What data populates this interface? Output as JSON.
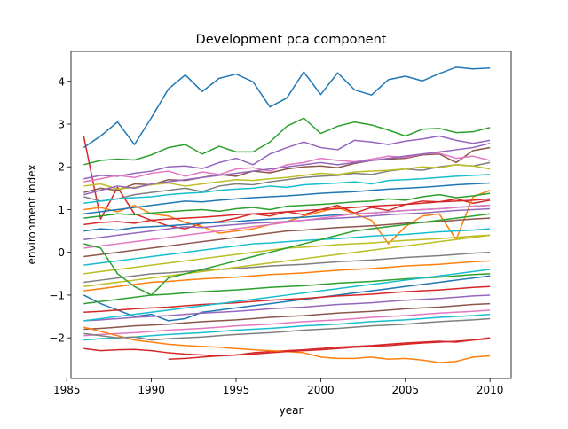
{
  "chart_data": {
    "type": "line",
    "title": "Development pca component",
    "xlabel": "year",
    "ylabel": "environment index",
    "xlim": [
      1985.25,
      2011.25
    ],
    "ylim": [
      -2.95,
      4.7
    ],
    "xticks": [
      1985,
      1990,
      1995,
      2000,
      2005,
      2010
    ],
    "yticks": [
      -2,
      -1,
      0,
      1,
      2,
      3,
      4
    ],
    "grid": false,
    "legend": "none",
    "palette": [
      "#1f77b4",
      "#ff7f0e",
      "#2ca02c",
      "#d62728",
      "#9467bd",
      "#8c564b",
      "#e377c2",
      "#7f7f7f",
      "#bcbd22",
      "#17becf"
    ],
    "x": [
      1986,
      1987,
      1988,
      1989,
      1990,
      1991,
      1992,
      1993,
      1994,
      1995,
      1996,
      1997,
      1998,
      1999,
      2000,
      2001,
      2002,
      2003,
      2004,
      2005,
      2006,
      2007,
      2008,
      2009,
      2010
    ],
    "series": [
      {
        "color": "#1f77b4",
        "values": [
          2.45,
          2.72,
          3.05,
          2.52,
          3.15,
          3.82,
          4.15,
          3.76,
          4.07,
          4.17,
          3.99,
          3.4,
          3.61,
          4.22,
          3.69,
          4.2,
          3.8,
          3.68,
          4.04,
          4.12,
          4.01,
          4.18,
          4.33,
          4.29,
          4.31
        ]
      },
      {
        "color": "#2ca02c",
        "values": [
          2.05,
          2.15,
          2.18,
          2.16,
          2.28,
          2.45,
          2.52,
          2.3,
          2.48,
          2.35,
          2.35,
          2.58,
          2.95,
          3.14,
          2.78,
          2.95,
          3.05,
          2.98,
          2.86,
          2.72,
          2.88,
          2.9,
          2.8,
          2.82,
          2.92
        ]
      },
      {
        "color": "#d62728",
        "values": [
          2.72,
          0.78,
          1.52,
          0.9,
          0.75,
          0.62,
          0.55,
          0.68,
          0.72,
          0.8,
          0.9,
          0.85,
          0.95,
          0.88,
          1.0,
          1.1,
          0.92,
          1.05,
          0.98,
          1.12,
          1.2,
          1.18,
          1.25,
          1.15,
          1.22
        ]
      },
      {
        "color": "#9467bd",
        "values": [
          1.72,
          1.8,
          1.78,
          1.85,
          1.9,
          2.0,
          2.02,
          1.96,
          2.1,
          2.2,
          2.05,
          2.3,
          2.45,
          2.58,
          2.45,
          2.4,
          2.62,
          2.58,
          2.52,
          2.6,
          2.65,
          2.72,
          2.62,
          2.55,
          2.62
        ]
      },
      {
        "color": "#8c564b",
        "values": [
          1.4,
          1.5,
          1.45,
          1.6,
          1.58,
          1.7,
          1.68,
          1.75,
          1.82,
          1.78,
          1.9,
          1.86,
          1.95,
          2.0,
          2.02,
          1.98,
          2.08,
          2.15,
          2.18,
          2.2,
          2.28,
          2.3,
          2.1,
          2.38,
          2.45
        ]
      },
      {
        "color": "#e377c2",
        "values": [
          1.65,
          1.72,
          1.8,
          1.75,
          1.85,
          1.9,
          1.78,
          1.88,
          1.82,
          1.95,
          1.98,
          1.9,
          2.05,
          2.1,
          2.2,
          2.15,
          2.12,
          2.18,
          2.25,
          2.22,
          2.3,
          2.32,
          2.2,
          2.25,
          2.15
        ]
      },
      {
        "color": "#7f7f7f",
        "values": [
          1.3,
          1.2,
          1.25,
          1.35,
          1.4,
          1.45,
          1.5,
          1.42,
          1.55,
          1.6,
          1.58,
          1.65,
          1.7,
          1.75,
          1.78,
          1.8,
          1.85,
          1.82,
          1.9,
          1.95,
          1.92,
          2.0,
          2.05,
          2.02,
          2.1
        ]
      },
      {
        "color": "#bcbd22",
        "values": [
          1.55,
          1.6,
          1.48,
          1.52,
          1.58,
          1.62,
          1.55,
          1.6,
          1.65,
          1.7,
          1.68,
          1.72,
          1.75,
          1.8,
          1.85,
          1.82,
          1.88,
          1.9,
          1.92,
          1.95,
          2.0,
          1.98,
          2.05,
          2.02,
          1.95
        ]
      },
      {
        "color": "#17becf",
        "values": [
          1.15,
          1.2,
          1.25,
          1.28,
          1.3,
          1.35,
          1.38,
          1.4,
          1.45,
          1.48,
          1.5,
          1.55,
          1.52,
          1.58,
          1.6,
          1.62,
          1.65,
          1.6,
          1.68,
          1.7,
          1.72,
          1.75,
          1.78,
          1.8,
          1.82
        ]
      },
      {
        "color": "#ff7f0e",
        "values": [
          1.0,
          1.05,
          0.95,
          1.1,
          0.9,
          0.85,
          0.7,
          0.6,
          0.45,
          0.5,
          0.55,
          0.65,
          0.72,
          0.85,
          0.95,
          1.05,
          0.9,
          0.75,
          0.2,
          0.6,
          0.85,
          0.9,
          0.3,
          1.3,
          1.45
        ]
      },
      {
        "color": "#2ca02c",
        "values": [
          0.8,
          0.85,
          0.9,
          0.88,
          0.92,
          0.95,
          0.98,
          1.0,
          0.96,
          1.02,
          1.05,
          1.0,
          1.08,
          1.1,
          1.12,
          1.15,
          1.18,
          1.2,
          1.25,
          1.22,
          1.3,
          1.35,
          1.28,
          1.32,
          1.38
        ]
      },
      {
        "color": "#d62728",
        "values": [
          0.65,
          0.7,
          0.72,
          0.68,
          0.75,
          0.78,
          0.8,
          0.82,
          0.85,
          0.88,
          0.9,
          0.92,
          0.95,
          0.98,
          1.0,
          1.02,
          1.05,
          1.08,
          1.1,
          1.12,
          1.15,
          1.18,
          1.2,
          1.22,
          1.25
        ]
      },
      {
        "color": "#1f77b4",
        "values": [
          0.5,
          0.55,
          0.52,
          0.58,
          0.6,
          0.62,
          0.65,
          0.68,
          0.7,
          0.72,
          0.75,
          0.78,
          0.8,
          0.82,
          0.85,
          0.88,
          0.9,
          0.92,
          0.95,
          0.98,
          1.0,
          1.02,
          1.05,
          1.08,
          1.1
        ]
      },
      {
        "color": "#9467bd",
        "values": [
          0.3,
          0.35,
          0.4,
          0.45,
          0.5,
          0.55,
          0.6,
          0.58,
          0.62,
          0.65,
          0.68,
          0.7,
          0.72,
          0.75,
          0.78,
          0.8,
          0.82,
          0.85,
          0.88,
          0.9,
          0.92,
          0.95,
          0.98,
          1.0,
          1.02
        ]
      },
      {
        "color": "#e377c2",
        "values": [
          0.1,
          0.15,
          0.2,
          0.25,
          0.3,
          0.35,
          0.4,
          0.45,
          0.5,
          0.55,
          0.6,
          0.65,
          0.7,
          0.75,
          0.8,
          0.85,
          0.9,
          0.92,
          0.95,
          0.98,
          1.0,
          1.02,
          1.05,
          1.08,
          1.1
        ]
      },
      {
        "color": "#8c564b",
        "values": [
          -0.1,
          -0.05,
          0.0,
          0.05,
          0.1,
          0.15,
          0.2,
          0.25,
          0.3,
          0.35,
          0.4,
          0.45,
          0.5,
          0.52,
          0.55,
          0.58,
          0.6,
          0.62,
          0.65,
          0.68,
          0.7,
          0.72,
          0.75,
          0.78,
          0.8
        ]
      },
      {
        "color": "#17becf",
        "values": [
          -0.3,
          -0.25,
          -0.2,
          -0.15,
          -0.1,
          -0.05,
          0.0,
          0.05,
          0.1,
          0.15,
          0.2,
          0.22,
          0.25,
          0.28,
          0.3,
          0.32,
          0.35,
          0.38,
          0.4,
          0.42,
          0.45,
          0.48,
          0.5,
          0.52,
          0.55
        ]
      },
      {
        "color": "#bcbd22",
        "values": [
          -0.5,
          -0.45,
          -0.4,
          -0.35,
          -0.3,
          -0.25,
          -0.2,
          -0.15,
          -0.1,
          -0.05,
          0.0,
          0.05,
          0.1,
          0.12,
          0.15,
          0.18,
          0.2,
          0.22,
          0.25,
          0.28,
          0.3,
          0.32,
          0.35,
          0.38,
          0.4
        ]
      },
      {
        "color": "#7f7f7f",
        "values": [
          -0.7,
          -0.65,
          -0.6,
          -0.55,
          -0.5,
          -0.48,
          -0.45,
          -0.42,
          -0.4,
          -0.38,
          -0.35,
          -0.32,
          -0.3,
          -0.28,
          -0.25,
          -0.22,
          -0.2,
          -0.18,
          -0.15,
          -0.12,
          -0.1,
          -0.08,
          -0.05,
          -0.02,
          0.0
        ]
      },
      {
        "color": "#ff7f0e",
        "values": [
          -0.9,
          -0.85,
          -0.8,
          -0.75,
          -0.7,
          -0.68,
          -0.65,
          -0.62,
          -0.6,
          -0.58,
          -0.55,
          -0.52,
          -0.5,
          -0.48,
          -0.45,
          -0.42,
          -0.4,
          -0.38,
          -0.35,
          -0.32,
          -0.3,
          -0.28,
          -0.25,
          -0.22,
          -0.2
        ]
      },
      {
        "color": "#1f77b4",
        "values": [
          -1.0,
          -1.2,
          -1.35,
          -1.5,
          -1.45,
          -1.6,
          -1.55,
          -1.4,
          -1.35,
          -1.3,
          -1.25,
          -1.2,
          -1.15,
          -1.1,
          -1.05,
          -1.0,
          -0.95,
          -0.9,
          -0.85,
          -0.8,
          -0.75,
          -0.7,
          -0.65,
          -0.6,
          -0.55
        ]
      },
      {
        "color": "#2ca02c",
        "values": [
          -1.2,
          -1.15,
          -1.1,
          -1.05,
          -1.0,
          -0.98,
          -0.95,
          -0.92,
          -0.9,
          -0.88,
          -0.85,
          -0.82,
          -0.8,
          -0.78,
          -0.75,
          -0.72,
          -0.7,
          -0.68,
          -0.65,
          -0.62,
          -0.6,
          -0.58,
          -0.55,
          -0.52,
          -0.5
        ]
      },
      {
        "color": "#d62728",
        "values": [
          -1.4,
          -1.38,
          -1.35,
          -1.32,
          -1.3,
          -1.28,
          -1.25,
          -1.22,
          -1.2,
          -1.18,
          -1.15,
          -1.12,
          -1.1,
          -1.08,
          -1.05,
          -1.02,
          -1.0,
          -0.98,
          -0.95,
          -0.92,
          -0.9,
          -0.88,
          -0.85,
          -0.82,
          -0.8
        ]
      },
      {
        "color": "#9467bd",
        "values": [
          -1.6,
          -1.58,
          -1.55,
          -1.52,
          -1.5,
          -1.48,
          -1.45,
          -1.42,
          -1.4,
          -1.38,
          -1.35,
          -1.32,
          -1.3,
          -1.28,
          -1.25,
          -1.22,
          -1.2,
          -1.18,
          -1.15,
          -1.12,
          -1.1,
          -1.08,
          -1.05,
          -1.02,
          -1.0
        ]
      },
      {
        "color": "#8c564b",
        "values": [
          -1.8,
          -1.78,
          -1.75,
          -1.72,
          -1.7,
          -1.68,
          -1.65,
          -1.62,
          -1.6,
          -1.58,
          -1.55,
          -1.52,
          -1.5,
          -1.48,
          -1.45,
          -1.42,
          -1.4,
          -1.38,
          -1.35,
          -1.32,
          -1.3,
          -1.28,
          -1.25,
          -1.22,
          -1.2
        ]
      },
      {
        "color": "#e377c2",
        "values": [
          -1.95,
          -1.92,
          -1.9,
          -1.88,
          -1.85,
          -1.82,
          -1.8,
          -1.78,
          -1.75,
          -1.72,
          -1.7,
          -1.68,
          -1.65,
          -1.62,
          -1.6,
          -1.58,
          -1.55,
          -1.52,
          -1.5,
          -1.48,
          -1.45,
          -1.42,
          -1.4,
          -1.38,
          -1.35
        ]
      },
      {
        "color": "#17becf",
        "values": [
          -2.05,
          -2.02,
          -2.0,
          -1.98,
          -1.95,
          -1.92,
          -1.9,
          -1.88,
          -1.85,
          -1.82,
          -1.8,
          -1.78,
          -1.75,
          -1.72,
          -1.7,
          -1.68,
          -1.65,
          -1.62,
          -1.6,
          -1.58,
          -1.55,
          -1.52,
          -1.5,
          -1.48,
          -1.45
        ]
      },
      {
        "color": "#d62728",
        "values": [
          -2.25,
          -2.3,
          -2.28,
          -2.27,
          -2.3,
          -2.35,
          -2.38,
          -2.4,
          -2.42,
          -2.4,
          -2.35,
          -2.32,
          -2.3,
          -2.28,
          -2.25,
          -2.22,
          -2.2,
          -2.18,
          -2.15,
          -2.12,
          -2.1,
          -2.08,
          -2.1,
          -2.05,
          -2.0
        ]
      },
      {
        "color": "#ff7f0e",
        "values": [
          -1.75,
          -1.85,
          -1.95,
          -2.05,
          -2.1,
          -2.15,
          -2.18,
          -2.2,
          -2.22,
          -2.25,
          -2.28,
          -2.3,
          -2.32,
          -2.35,
          -2.45,
          -2.48,
          -2.48,
          -2.45,
          -2.5,
          -2.48,
          -2.52,
          -2.58,
          -2.55,
          -2.45,
          -2.42
        ]
      },
      {
        "color": "#7f7f7f",
        "values": [
          -1.9,
          -1.95,
          -2.0,
          -1.98,
          -2.05,
          -2.02,
          -2.0,
          -1.98,
          -1.95,
          -1.92,
          -1.9,
          -1.88,
          -1.85,
          -1.82,
          -1.8,
          -1.78,
          -1.75,
          -1.72,
          -1.7,
          -1.68,
          -1.65,
          -1.62,
          -1.6,
          -1.58,
          -1.55
        ]
      },
      {
        "color": "#bcbd22",
        "values": [
          -0.8,
          -0.75,
          -0.7,
          -0.65,
          -0.6,
          -0.55,
          -0.5,
          -0.45,
          -0.4,
          -0.35,
          -0.3,
          -0.25,
          -0.2,
          -0.15,
          -0.1,
          -0.05,
          0.0,
          0.05,
          0.1,
          0.15,
          0.2,
          0.25,
          0.3,
          0.35,
          0.4
        ]
      },
      {
        "color": "#1f77b4",
        "values": [
          0.9,
          0.95,
          1.0,
          1.05,
          1.1,
          1.15,
          1.2,
          1.18,
          1.22,
          1.25,
          1.28,
          1.3,
          1.32,
          1.35,
          1.38,
          1.4,
          1.42,
          1.45,
          1.48,
          1.5,
          1.52,
          1.55,
          1.58,
          1.6,
          1.62
        ]
      },
      {
        "color": "#2ca02c",
        "values": [
          0.2,
          0.1,
          -0.5,
          -0.8,
          -1.0,
          -0.6,
          -0.5,
          -0.4,
          -0.3,
          -0.2,
          -0.1,
          0.0,
          0.1,
          0.2,
          0.3,
          0.4,
          0.5,
          0.55,
          0.6,
          0.65,
          0.7,
          0.75,
          0.8,
          0.85,
          0.9
        ]
      },
      {
        "color": "#d62728",
        "values": [
          null,
          null,
          null,
          null,
          null,
          -2.5,
          -2.48,
          -2.45,
          -2.42,
          -2.4,
          -2.38,
          -2.35,
          -2.32,
          -2.3,
          -2.28,
          -2.25,
          -2.22,
          -2.2,
          -2.18,
          -2.15,
          -2.12,
          -2.1,
          -2.08,
          -2.05,
          -2.02
        ]
      },
      {
        "color": "#9467bd",
        "values": [
          1.35,
          1.45,
          1.55,
          1.5,
          1.6,
          1.65,
          1.7,
          1.75,
          1.8,
          1.85,
          1.9,
          1.95,
          2.0,
          2.05,
          2.1,
          2.05,
          2.1,
          2.15,
          2.2,
          2.25,
          2.3,
          2.35,
          2.4,
          2.45,
          2.55
        ]
      },
      {
        "color": "#17becf",
        "values": [
          -1.6,
          -1.55,
          -1.5,
          -1.45,
          -1.4,
          -1.35,
          -1.3,
          -1.25,
          -1.2,
          -1.15,
          -1.1,
          -1.05,
          -1.0,
          -0.95,
          -0.9,
          -0.85,
          -0.8,
          -0.75,
          -0.7,
          -0.65,
          -0.6,
          -0.55,
          -0.5,
          -0.45,
          -0.4
        ]
      }
    ]
  }
}
